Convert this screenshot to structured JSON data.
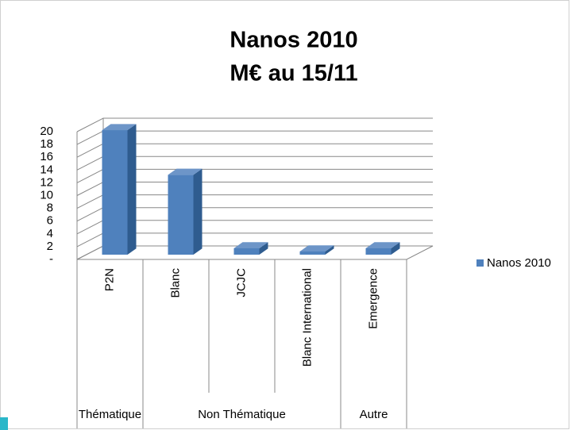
{
  "chart_data": {
    "type": "bar3d",
    "title": [
      "Nanos 2010",
      "M€ au 15/11"
    ],
    "categories": [
      "P2N",
      "Blanc",
      "JCJC",
      "Blanc International",
      "Emergence"
    ],
    "groups": [
      {
        "name": "Thématique",
        "count": 1
      },
      {
        "name": "Non Thématique",
        "count": 3
      },
      {
        "name": "Autre",
        "count": 1
      }
    ],
    "series": [
      {
        "name": "Nanos 2010",
        "color": "#4f81bd",
        "values": [
          19.5,
          12.5,
          1,
          0.5,
          1
        ]
      }
    ],
    "ylim": [
      0,
      20
    ],
    "yticks": [
      {
        "value": 0,
        "label": "-"
      },
      2,
      4,
      6,
      8,
      10,
      12,
      14,
      16,
      18,
      20
    ],
    "grid": true,
    "legend": "right"
  }
}
